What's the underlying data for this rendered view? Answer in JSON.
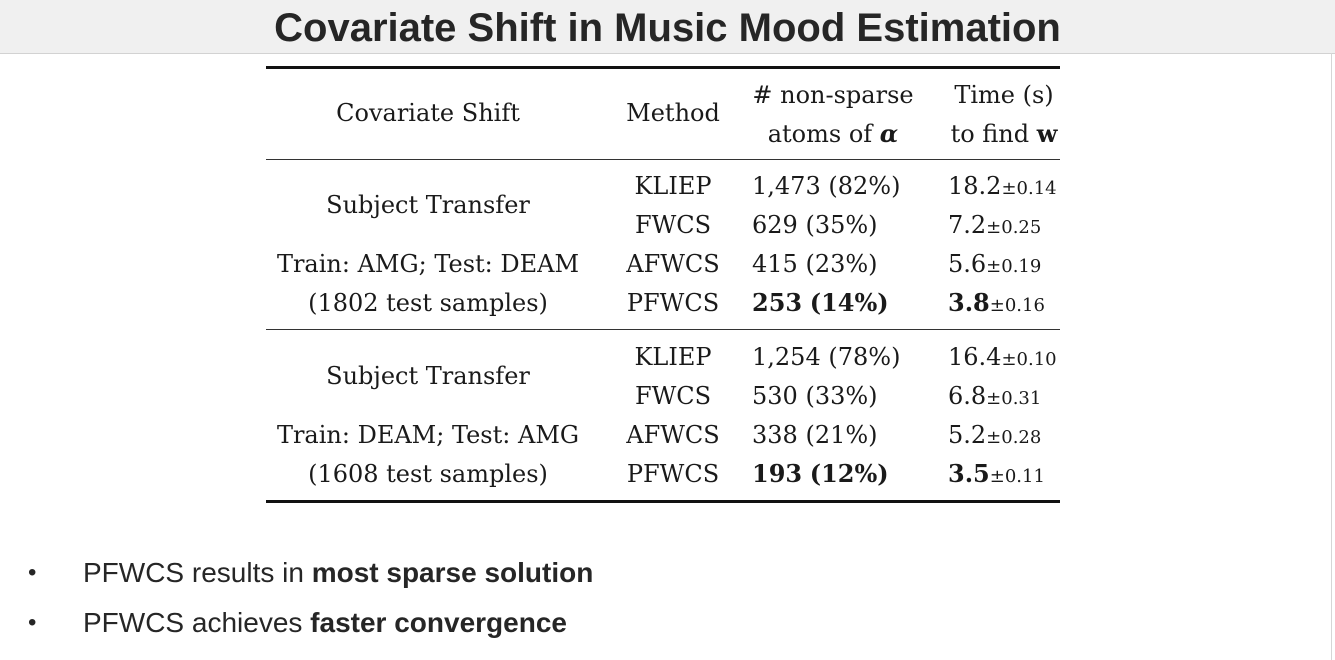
{
  "title": "Covariate Shift in Music Mood Estimation",
  "table": {
    "headers": {
      "covariate_shift": "Covariate Shift",
      "method": "Method",
      "atoms_line1": "# non-sparse",
      "atoms_line2_prefix": "atoms of ",
      "atoms_line2_symbol": "α",
      "time_line1": "Time (s)",
      "time_line2_prefix": "to find ",
      "time_line2_symbol": "w"
    },
    "groups": [
      {
        "shift_lines": [
          "Subject Transfer",
          "Train: AMG; Test: DEAM",
          "(1802 test samples)"
        ],
        "rows": [
          {
            "method": "KLIEP",
            "atoms": "1,473",
            "pct": "(82%)",
            "time": "18.2",
            "pm": "±0.14",
            "bold": false
          },
          {
            "method": "FWCS",
            "atoms": "629",
            "pct": "(35%)",
            "time": "7.2",
            "pm": "±0.25",
            "bold": false
          },
          {
            "method": "AFWCS",
            "atoms": "415",
            "pct": "(23%)",
            "time": "5.6",
            "pm": "±0.19",
            "bold": false
          },
          {
            "method": "PFWCS",
            "atoms": "253",
            "pct": "(14%)",
            "time": "3.8",
            "pm": "±0.16",
            "bold": true
          }
        ]
      },
      {
        "shift_lines": [
          "Subject Transfer",
          "Train: DEAM; Test: AMG",
          "(1608 test samples)"
        ],
        "rows": [
          {
            "method": "KLIEP",
            "atoms": "1,254",
            "pct": "(78%)",
            "time": "16.4",
            "pm": "±0.10",
            "bold": false
          },
          {
            "method": "FWCS",
            "atoms": "530",
            "pct": "(33%)",
            "time": "6.8",
            "pm": "±0.31",
            "bold": false
          },
          {
            "method": "AFWCS",
            "atoms": "338",
            "pct": "(21%)",
            "time": "5.2",
            "pm": "±0.28",
            "bold": false
          },
          {
            "method": "PFWCS",
            "atoms": "193",
            "pct": "(12%)",
            "time": "3.5",
            "pm": "±0.11",
            "bold": true
          }
        ]
      }
    ]
  },
  "bullets": [
    {
      "marker": "•",
      "plain": "PFWCS results in ",
      "bold": "most sparse solution"
    },
    {
      "marker": "•",
      "plain": "PFWCS achieves ",
      "bold": "faster convergence"
    }
  ]
}
